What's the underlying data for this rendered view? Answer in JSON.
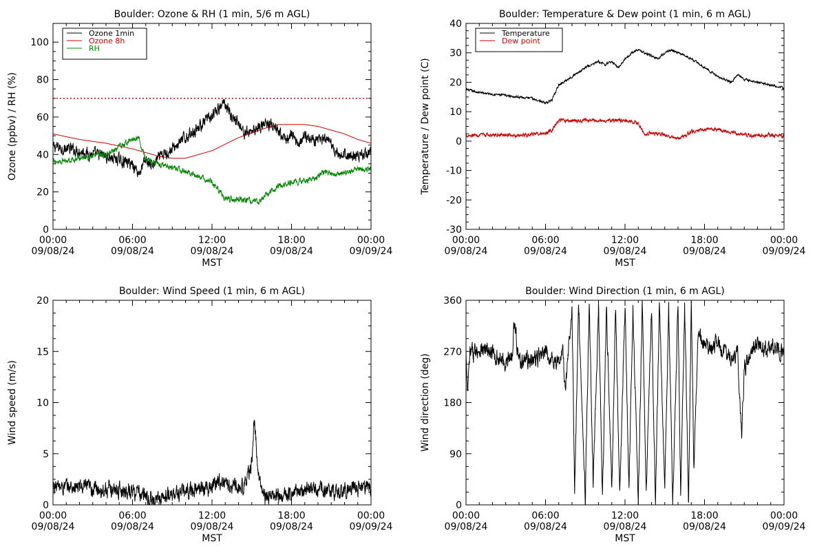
{
  "chart_data": [
    {
      "type": "line",
      "title": "Boulder: Ozone & RH (1 min, 5/6 m AGL)",
      "xlabel": "MST",
      "ylabel": "Ozone (ppbv) / RH (%)",
      "xlim": [
        0,
        24
      ],
      "ylim": [
        0,
        110
      ],
      "yticks": [
        0,
        20,
        40,
        60,
        80,
        100
      ],
      "xticks": [
        {
          "x": 0,
          "time": "00:00",
          "date": "09/08/24"
        },
        {
          "x": 6,
          "time": "06:00",
          "date": "09/08/24"
        },
        {
          "x": 12,
          "time": "12:00",
          "date": "09/08/24"
        },
        {
          "x": 18,
          "time": "18:00",
          "date": "09/08/24"
        },
        {
          "x": 24,
          "time": "00:00",
          "date": "09/09/24"
        }
      ],
      "legend_position": "top-left",
      "reference_line": {
        "y": 70,
        "color": "#cc0000",
        "style": "dotted"
      },
      "series": [
        {
          "name": "Ozone 1min",
          "color": "#000000",
          "noise": 2.5,
          "x": [
            0,
            1,
            2,
            3,
            4,
            5,
            6,
            6.5,
            7,
            7.5,
            8,
            9,
            10,
            11,
            12,
            12.5,
            13,
            13.5,
            14,
            14.5,
            15,
            15.5,
            16,
            16.5,
            17,
            17.5,
            18,
            18.5,
            19,
            19.5,
            20,
            20.5,
            21,
            21.5,
            22,
            23,
            24
          ],
          "y": [
            44,
            43,
            42,
            40,
            39,
            37,
            35,
            30,
            37,
            34,
            38,
            43,
            49,
            55,
            60,
            64,
            68,
            60,
            57,
            51,
            53,
            55,
            56,
            56,
            51,
            48,
            50,
            46,
            50,
            48,
            49,
            47,
            45,
            39,
            40,
            39,
            42
          ]
        },
        {
          "name": "Ozone 8h",
          "color": "#cc0000",
          "noise": 0,
          "x": [
            0,
            2,
            4,
            6,
            8,
            9,
            10,
            12,
            14,
            16,
            17,
            18,
            19,
            20,
            21,
            22,
            23,
            24
          ],
          "y": [
            51,
            48,
            46,
            43,
            39,
            38,
            38,
            42,
            49,
            54,
            56,
            56,
            56,
            55,
            53,
            51,
            48,
            46
          ]
        },
        {
          "name": "RH",
          "color": "#008800",
          "noise": 1.2,
          "x": [
            0,
            1,
            2,
            3,
            4,
            5,
            6,
            6.5,
            7,
            8,
            9,
            10,
            11,
            12,
            12.5,
            13,
            14,
            15,
            15.5,
            16,
            17,
            18,
            19,
            20,
            20.5,
            21,
            22,
            23,
            24
          ],
          "y": [
            36,
            37,
            38,
            39,
            40,
            44,
            48,
            49,
            37,
            35,
            33,
            31,
            28,
            25,
            21,
            16,
            16,
            15,
            15,
            18,
            23,
            25,
            26,
            28,
            31,
            29,
            30,
            32,
            32
          ]
        }
      ]
    },
    {
      "type": "line",
      "title": "Boulder: Temperature & Dew point (1 min, 6 m AGL)",
      "xlabel": "MST",
      "ylabel": "Temperature / Dew point (C)",
      "xlim": [
        0,
        24
      ],
      "ylim": [
        -30,
        40
      ],
      "yticks": [
        -30,
        -20,
        -10,
        0,
        10,
        20,
        30,
        40
      ],
      "xticks": [
        {
          "x": 0,
          "time": "00:00",
          "date": "09/08/24"
        },
        {
          "x": 6,
          "time": "06:00",
          "date": "09/08/24"
        },
        {
          "x": 12,
          "time": "12:00",
          "date": "09/08/24"
        },
        {
          "x": 18,
          "time": "18:00",
          "date": "09/08/24"
        },
        {
          "x": 24,
          "time": "00:00",
          "date": "09/09/24"
        }
      ],
      "legend_position": "top-left",
      "series": [
        {
          "name": "Temperature",
          "color": "#000000",
          "noise": 0.3,
          "x": [
            0,
            1,
            2,
            3,
            4,
            5,
            6,
            6.5,
            7,
            8,
            9,
            10,
            10.5,
            11,
            11.5,
            12,
            12.5,
            13,
            13.5,
            14,
            14.5,
            15,
            15.5,
            16,
            17,
            18,
            19,
            20,
            20.5,
            21,
            22,
            23,
            24
          ],
          "y": [
            17.5,
            16.5,
            16,
            15.5,
            15,
            14.5,
            13,
            14,
            19,
            22,
            25,
            27,
            26,
            27,
            25,
            28,
            30,
            31,
            30,
            29,
            28,
            30,
            31,
            30,
            28,
            25,
            22,
            20,
            22.5,
            21,
            20,
            19,
            18
          ]
        },
        {
          "name": "Dew point",
          "color": "#cc0000",
          "noise": 0.5,
          "x": [
            0,
            2,
            4,
            6,
            6.5,
            7,
            8,
            10,
            12,
            13,
            13.5,
            14,
            15,
            16,
            17,
            18,
            19,
            20,
            21,
            22,
            23,
            24
          ],
          "y": [
            2,
            2,
            2,
            2.5,
            4,
            7,
            7,
            7,
            7,
            6,
            2,
            3,
            2,
            1,
            3,
            4,
            4,
            3,
            2,
            2,
            2,
            1.5
          ]
        }
      ]
    },
    {
      "type": "line",
      "title": "Boulder: Wind Speed (1 min, 6 m AGL)",
      "xlabel": "MST",
      "ylabel": "Wind speed (m/s)",
      "xlim": [
        0,
        24
      ],
      "ylim": [
        0,
        20
      ],
      "yticks": [
        0,
        5,
        10,
        15,
        20
      ],
      "xticks": [
        {
          "x": 0,
          "time": "00:00",
          "date": "09/08/24"
        },
        {
          "x": 6,
          "time": "06:00",
          "date": "09/08/24"
        },
        {
          "x": 12,
          "time": "12:00",
          "date": "09/08/24"
        },
        {
          "x": 18,
          "time": "18:00",
          "date": "09/08/24"
        },
        {
          "x": 24,
          "time": "00:00",
          "date": "09/09/24"
        }
      ],
      "series": [
        {
          "name": "",
          "color": "#000000",
          "noise": 0.6,
          "x": [
            0,
            2,
            4,
            6,
            7,
            7.5,
            8,
            9,
            10,
            11,
            12,
            12.5,
            13,
            14,
            14.5,
            15,
            15.2,
            15.5,
            16,
            17,
            18,
            19,
            20,
            21,
            22,
            23,
            24
          ],
          "y": [
            1.8,
            1.7,
            1.5,
            1.4,
            0.8,
            0.3,
            0.6,
            1,
            1.3,
            1.6,
            1.8,
            2.5,
            2,
            1.8,
            2,
            4,
            8.5,
            2.5,
            0.8,
            0.9,
            1.2,
            1.5,
            1.5,
            1.3,
            1.4,
            1.6,
            1.7
          ]
        }
      ]
    },
    {
      "type": "line",
      "title": "Boulder: Wind Direction (1 min, 6 m AGL)",
      "xlabel": "MST",
      "ylabel": "Wind direction (deg)",
      "xlim": [
        0,
        24
      ],
      "ylim": [
        0,
        360
      ],
      "yticks": [
        0,
        90,
        180,
        270,
        360
      ],
      "xticks": [
        {
          "x": 0,
          "time": "00:00",
          "date": "09/08/24"
        },
        {
          "x": 6,
          "time": "06:00",
          "date": "09/08/24"
        },
        {
          "x": 12,
          "time": "12:00",
          "date": "09/08/24"
        },
        {
          "x": 18,
          "time": "18:00",
          "date": "09/08/24"
        },
        {
          "x": 24,
          "time": "00:00",
          "date": "09/09/24"
        }
      ],
      "series": [
        {
          "name": "",
          "color": "#000000",
          "noise": 12,
          "x": [
            0,
            0.1,
            0.3,
            1,
            2,
            3,
            3.5,
            3.6,
            4,
            5,
            6,
            7,
            7.3,
            7.5,
            8,
            8.2,
            8.5,
            9,
            9.3,
            9.6,
            10,
            10.3,
            10.6,
            11,
            11.3,
            11.6,
            12,
            12.3,
            12.6,
            13,
            13.3,
            13.6,
            14,
            14.3,
            14.6,
            15,
            15.3,
            15.6,
            16,
            16.2,
            16.5,
            16.8,
            17,
            17.2,
            17.5,
            18,
            18.5,
            19,
            19.5,
            20,
            20.5,
            20.8,
            21,
            21.5,
            22,
            23,
            24
          ],
          "y": [
            270,
            190,
            265,
            275,
            265,
            250,
            265,
            330,
            255,
            255,
            265,
            250,
            270,
            200,
            355,
            20,
            350,
            10,
            355,
            30,
            350,
            5,
            355,
            20,
            350,
            10,
            355,
            25,
            350,
            0,
            355,
            15,
            350,
            5,
            355,
            20,
            350,
            5,
            355,
            20,
            350,
            5,
            355,
            60,
            300,
            275,
            270,
            290,
            265,
            260,
            270,
            120,
            240,
            270,
            280,
            275,
            270
          ]
        }
      ]
    }
  ]
}
